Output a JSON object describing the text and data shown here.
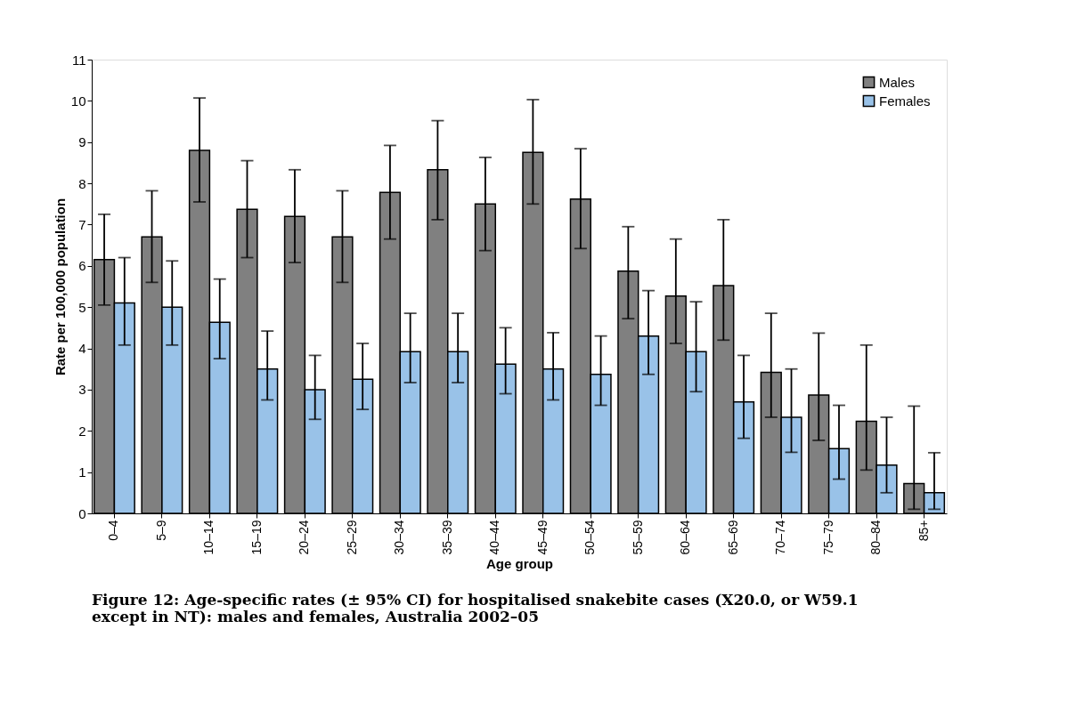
{
  "chart_data": {
    "type": "bar",
    "xlabel": "Age group",
    "ylabel": "Rate per 100,000 population",
    "categories": [
      "0–4",
      "5–9",
      "10–14",
      "15–19",
      "20–24",
      "25–29",
      "30–34",
      "35–39",
      "40–44",
      "45–49",
      "50–54",
      "55–59",
      "60–64",
      "65–69",
      "70–74",
      "75–79",
      "80–84",
      "85+"
    ],
    "series": [
      {
        "name": "Males",
        "color": "#808080",
        "values": [
          6.15,
          6.7,
          8.8,
          7.37,
          7.2,
          6.7,
          7.78,
          8.33,
          7.5,
          8.75,
          7.62,
          5.87,
          5.27,
          5.52,
          3.42,
          2.87,
          2.23,
          0.72
        ],
        "errors": [
          [
            5.05,
            7.25
          ],
          [
            5.6,
            7.82
          ],
          [
            7.55,
            10.07
          ],
          [
            6.2,
            8.55
          ],
          [
            6.08,
            8.33
          ],
          [
            5.6,
            7.82
          ],
          [
            6.65,
            8.92
          ],
          [
            7.12,
            9.52
          ],
          [
            6.37,
            8.63
          ],
          [
            7.5,
            10.03
          ],
          [
            6.42,
            8.84
          ],
          [
            4.72,
            6.95
          ],
          [
            4.12,
            6.65
          ],
          [
            4.2,
            7.12
          ],
          [
            2.33,
            4.85
          ],
          [
            1.77,
            4.37
          ],
          [
            1.05,
            4.08
          ],
          [
            0.1,
            2.6
          ]
        ]
      },
      {
        "name": "Females",
        "color": "#99c2e8",
        "values": [
          5.1,
          5.0,
          4.63,
          3.5,
          3.0,
          3.25,
          3.92,
          3.92,
          3.62,
          3.5,
          3.37,
          4.3,
          3.92,
          2.7,
          2.33,
          1.57,
          1.17,
          0.5
        ],
        "errors": [
          [
            4.08,
            6.2
          ],
          [
            4.08,
            6.12
          ],
          [
            3.75,
            5.68
          ],
          [
            2.75,
            4.42
          ],
          [
            2.28,
            3.83
          ],
          [
            2.52,
            4.12
          ],
          [
            3.17,
            4.85
          ],
          [
            3.17,
            4.85
          ],
          [
            2.9,
            4.5
          ],
          [
            2.75,
            4.38
          ],
          [
            2.62,
            4.3
          ],
          [
            3.37,
            5.4
          ],
          [
            2.95,
            5.13
          ],
          [
            1.82,
            3.83
          ],
          [
            1.48,
            3.5
          ],
          [
            0.83,
            2.62
          ],
          [
            0.5,
            2.33
          ],
          [
            0.1,
            1.47
          ]
        ]
      }
    ],
    "ylim": [
      0,
      11
    ],
    "yticks": [
      0,
      1,
      2,
      3,
      4,
      5,
      6,
      7,
      8,
      9,
      10,
      11
    ],
    "grid": false,
    "legend": "top right",
    "annotations": [
      "Figure 12: Age-specific rates (± 95% CI) for hospitalised snakebite cases (X20.0, or W59.1 except in NT): males and females, Australia 2002–05"
    ]
  }
}
